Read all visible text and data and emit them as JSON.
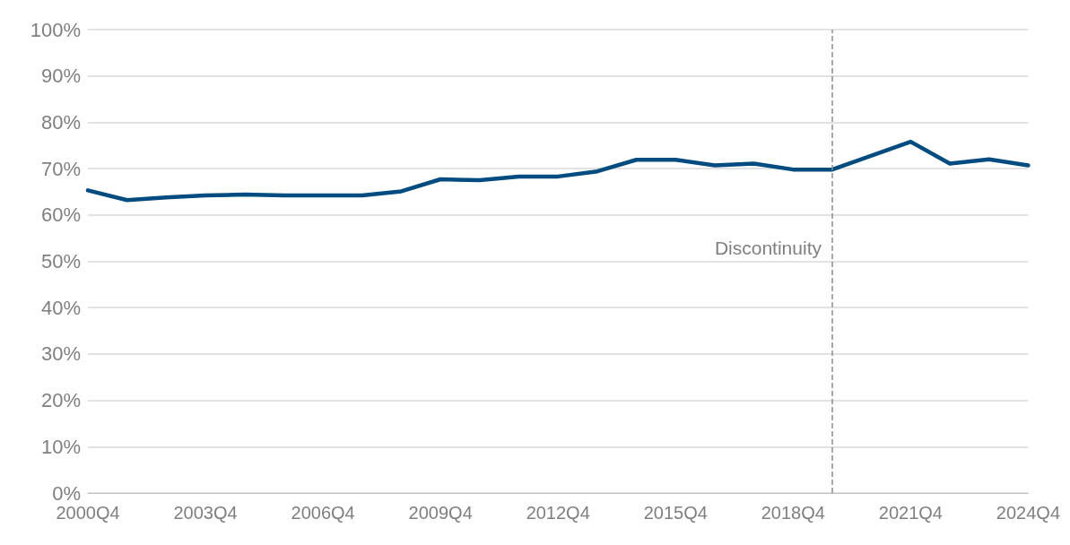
{
  "chart_data": {
    "type": "line",
    "categories": [
      "2000Q4",
      null,
      null,
      "2003Q4",
      null,
      null,
      "2006Q4",
      null,
      null,
      "2009Q4",
      null,
      null,
      "2012Q4",
      null,
      null,
      "2015Q4",
      null,
      null,
      "2018Q4",
      null,
      null,
      "2021Q4",
      null,
      null,
      "2024Q4"
    ],
    "series": [
      {
        "color": "#004b7f",
        "values": [
          65.3,
          63.2,
          63.8,
          64.2,
          64.4,
          64.2,
          64.2,
          64.2,
          65.1,
          67.7,
          67.5,
          68.3,
          68.3,
          69.4,
          71.9,
          71.9,
          70.7,
          71.1,
          69.8,
          69.8,
          72.8,
          75.8,
          71.1,
          72.0,
          70.7
        ]
      }
    ],
    "ylim": [
      0,
      100
    ],
    "yticks": [
      {
        "value": 0,
        "label": "0%"
      },
      {
        "value": 10,
        "label": "10%"
      },
      {
        "value": 20,
        "label": "20%"
      },
      {
        "value": 30,
        "label": "30%"
      },
      {
        "value": 40,
        "label": "40%"
      },
      {
        "value": 50,
        "label": "50%"
      },
      {
        "value": 60,
        "label": "60%"
      },
      {
        "value": 70,
        "label": "70%"
      },
      {
        "value": 80,
        "label": "80%"
      },
      {
        "value": 90,
        "label": "90%"
      },
      {
        "value": 100,
        "label": "100%"
      }
    ],
    "annotations": [
      "Discontinuity"
    ],
    "grid": "y",
    "marker": "none",
    "line_style": "solid"
  }
}
